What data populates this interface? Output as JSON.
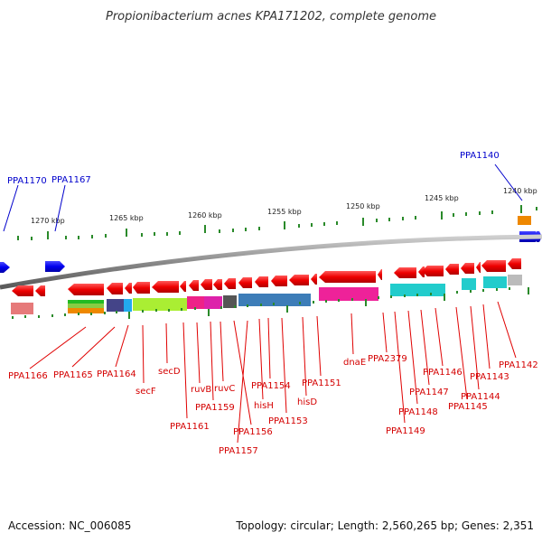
{
  "title": "Propionibacterium acnes KPA171202, complete genome",
  "footer": {
    "accession": "Accession: NC_006085",
    "stats": "Topology: circular; Length: 2,560,265 bp; Genes: 2,351"
  },
  "scale": [
    "1270 kbp",
    "1265 kbp",
    "1260 kbp",
    "1255 kbp",
    "1250 kbp",
    "1245 kbp",
    "1240 kbp"
  ],
  "top_genes": [
    "PPA1170",
    "PPA1167",
    "PPA1140"
  ],
  "bottom_genes": [
    "PPA1166",
    "PPA1165",
    "PPA1164",
    "secF",
    "secD",
    "ruvB",
    "PPA1161",
    "PPA1159",
    "ruvC",
    "PPA1157",
    "PPA1156",
    "hisH",
    "PPA1154",
    "PPA1153",
    "hisD",
    "PPA1151",
    "dnaE",
    "PPA2379",
    "PPA1149",
    "PPA1148",
    "PPA1147",
    "PPA1146",
    "PPA1145",
    "PPA1144",
    "PPA1143",
    "PPA1142"
  ],
  "colors": {
    "gene_red": "#ee0000",
    "gene_blue": "#0000ee",
    "backbone": "#777777",
    "tick_green": "#2a8a2a"
  }
}
